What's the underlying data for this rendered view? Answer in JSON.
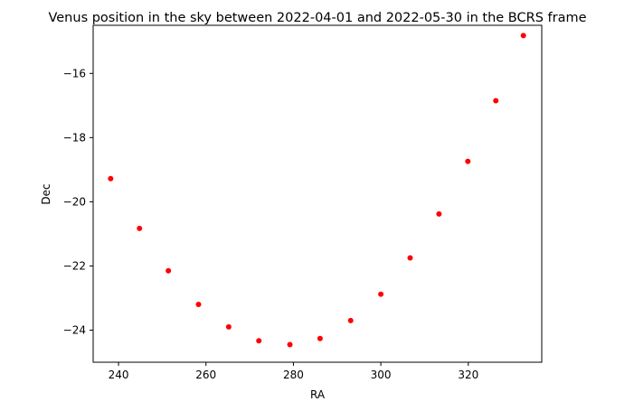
{
  "chart_data": {
    "type": "scatter",
    "title": "Venus position in the sky between 2022-04-01 and 2022-05-30 in the BCRS frame",
    "xlabel": "RA",
    "ylabel": "Dec",
    "xlim": [
      234.2,
      336.8
    ],
    "ylim": [
      -25.0,
      -14.5
    ],
    "xticks": [
      240,
      260,
      280,
      300,
      320
    ],
    "yticks": [
      -24,
      -22,
      -20,
      -18,
      -16
    ],
    "grid": false,
    "legend": "none",
    "marker_color": "#ff0000",
    "points": [
      {
        "x": 238.2,
        "y": -19.28
      },
      {
        "x": 244.8,
        "y": -20.83
      },
      {
        "x": 251.4,
        "y": -22.15
      },
      {
        "x": 258.3,
        "y": -23.2
      },
      {
        "x": 265.2,
        "y": -23.9
      },
      {
        "x": 272.1,
        "y": -24.33
      },
      {
        "x": 279.2,
        "y": -24.45
      },
      {
        "x": 286.1,
        "y": -24.26
      },
      {
        "x": 293.1,
        "y": -23.7
      },
      {
        "x": 300.0,
        "y": -22.88
      },
      {
        "x": 306.7,
        "y": -21.75
      },
      {
        "x": 313.3,
        "y": -20.38
      },
      {
        "x": 319.9,
        "y": -18.74
      },
      {
        "x": 326.3,
        "y": -16.85
      },
      {
        "x": 332.6,
        "y": -14.82
      }
    ]
  }
}
